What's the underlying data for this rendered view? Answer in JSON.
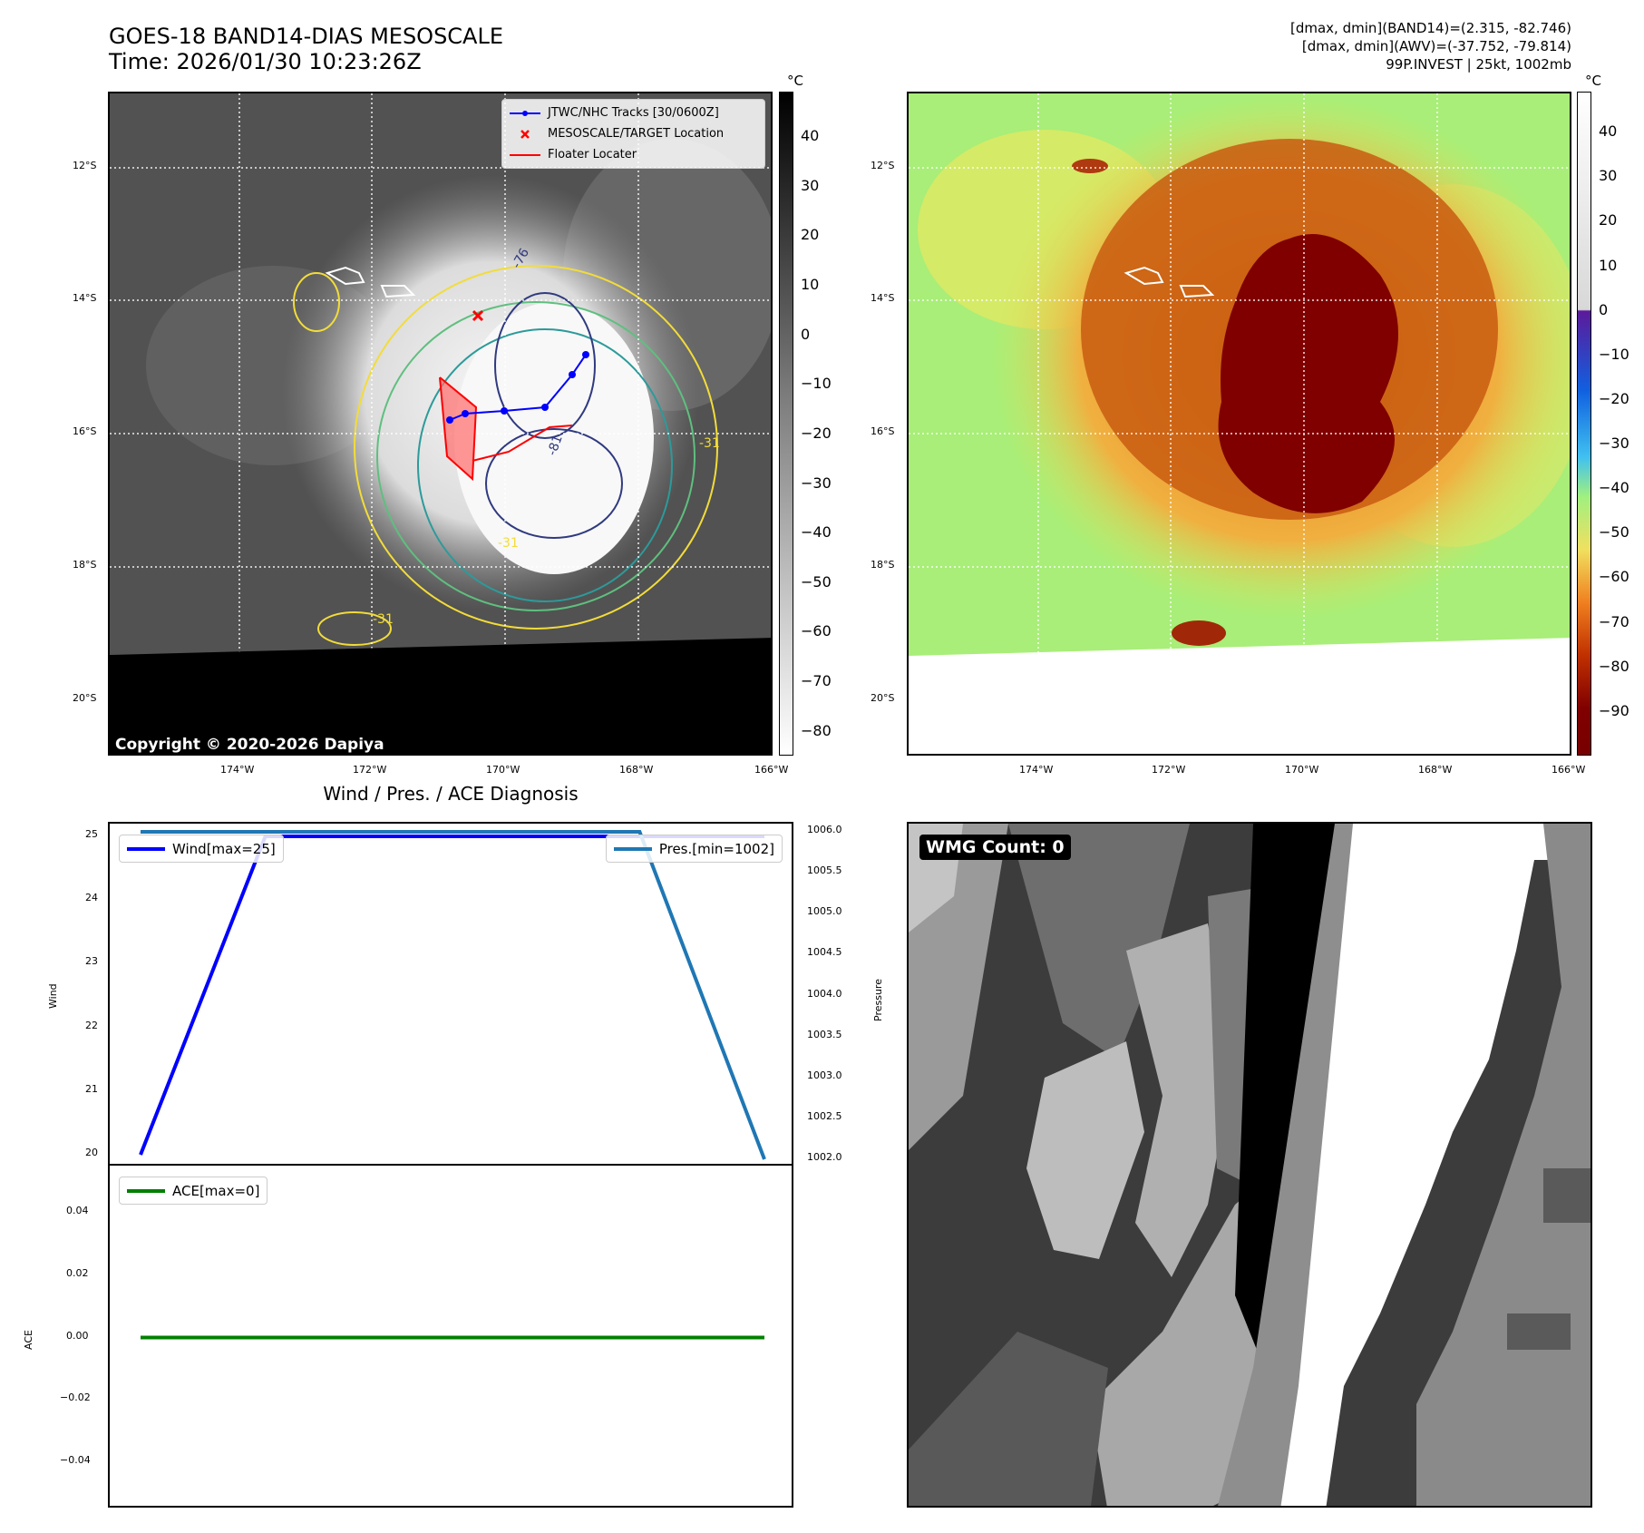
{
  "title": {
    "line1": "GOES-18 BAND14-DIAS MESOSCALE",
    "line2": "Time: 2026/01/30 10:23:26Z"
  },
  "header_right": {
    "line1": "[dmax, dmin](BAND14)=(2.315, -82.746)",
    "line2": "[dmax, dmin](AWV)=(-37.752, -79.814)",
    "line3": "99P.INVEST | 25kt, 1002mb"
  },
  "map_axes": {
    "lat_labels": [
      "12°S",
      "14°S",
      "16°S",
      "18°S",
      "20°S"
    ],
    "lon_labels": [
      "174°W",
      "172°W",
      "170°W",
      "168°W",
      "166°W"
    ]
  },
  "ir_panel": {
    "copyright": "Copyright © 2020-2026 Dapiya",
    "legend": [
      {
        "label": "JTWC/NHC Tracks [30/0600Z]",
        "color": "#0000ff",
        "marker": "line-dot"
      },
      {
        "label": "MESOSCALE/TARGET Location",
        "color": "#ff0000",
        "marker": "x"
      },
      {
        "label": "Floater Locater",
        "color": "#ff0000",
        "marker": "line"
      }
    ],
    "contour_labels": [
      "-31",
      "-76",
      "-81",
      "-31",
      "-31"
    ],
    "colorbar": {
      "unit": "°C",
      "ticks": [
        "40",
        "30",
        "20",
        "10",
        "0",
        "−10",
        "−20",
        "−30",
        "−40",
        "−50",
        "−60",
        "−70",
        "−80"
      ],
      "range": [
        -85,
        49
      ]
    }
  },
  "awv_panel": {
    "colorbar": {
      "unit": "°C",
      "ticks": [
        "40",
        "30",
        "20",
        "10",
        "0",
        "−10",
        "−20",
        "−30",
        "−40",
        "−50",
        "−60",
        "−70",
        "−80",
        "−90"
      ],
      "range": [
        -100,
        49
      ]
    }
  },
  "diag_title": "Wind / Pres. / ACE Diagnosis",
  "wmg_panel": {
    "label": "WMG Count: 0"
  },
  "chart_data": [
    {
      "type": "line",
      "title": "Wind / Pres. / ACE Diagnosis",
      "ylabel": "Wind",
      "ylabel_right": "Pressure",
      "series": [
        {
          "name": "Wind[max=25]",
          "axis": "left",
          "color": "#0000ff",
          "x": [
            0,
            1,
            2,
            3,
            4,
            5
          ],
          "values": [
            20,
            25,
            25,
            25,
            25,
            25
          ]
        },
        {
          "name": "Pres.[min=1002]",
          "axis": "right",
          "color": "#1f77b4",
          "x": [
            0,
            1,
            2,
            3,
            4,
            5
          ],
          "values": [
            1006,
            1006,
            1006,
            1006,
            1006,
            1002
          ]
        }
      ],
      "ylim": [
        19.8,
        25.2
      ],
      "ylim_right": [
        1001.9,
        1006.1
      ],
      "yticks": [
        "25",
        "24",
        "23",
        "22",
        "21",
        "20"
      ],
      "yticks_right": [
        "1006.0",
        "1005.5",
        "1005.0",
        "1004.5",
        "1004.0",
        "1003.5",
        "1003.0",
        "1002.5",
        "1002.0"
      ],
      "legend_position": "top-left / top-right"
    },
    {
      "type": "line",
      "ylabel": "ACE",
      "series": [
        {
          "name": "ACE[max=0]",
          "color": "#008000",
          "x": [
            0,
            5
          ],
          "values": [
            0,
            0
          ]
        }
      ],
      "ylim": [
        -0.055,
        0.055
      ],
      "yticks": [
        "0.04",
        "0.02",
        "0.00",
        "−0.02",
        "−0.04"
      ],
      "legend_position": "top-left"
    }
  ]
}
